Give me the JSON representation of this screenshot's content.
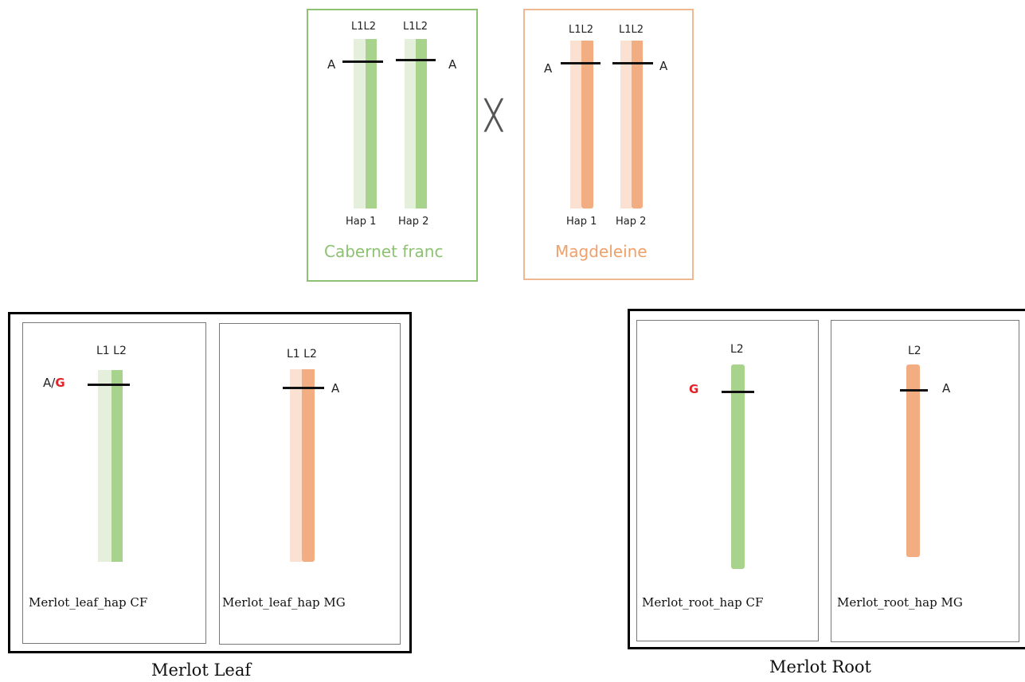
{
  "parents": {
    "cf": {
      "name": "Cabernet franc",
      "color": "#8cc271",
      "hap1_layers": "L1L2",
      "hap2_layers": "L1L2",
      "hap1_label": "Hap 1",
      "hap2_label": "Hap 2",
      "hap1_allele": "A",
      "hap2_allele": "A"
    },
    "cross_symbol": "╳",
    "mg": {
      "name": "Magdeleine",
      "color": "#f0a06a",
      "hap1_layers": "L1L2",
      "hap2_layers": "L1L2",
      "hap1_label": "Hap 1",
      "hap2_label": "Hap 2",
      "hap1_allele": "A",
      "hap2_allele": "A"
    }
  },
  "leaf": {
    "title": "Merlot Leaf",
    "cf": {
      "layers": "L1 L2",
      "allele_prefix": "A/",
      "allele_alt": "G",
      "caption": "Merlot_leaf_hap CF"
    },
    "mg": {
      "layers": "L1 L2",
      "allele": "A",
      "caption": "Merlot_leaf_hap MG"
    }
  },
  "root": {
    "title": "Merlot Root",
    "cf": {
      "layer": "L2",
      "allele_alt": "G",
      "caption": "Merlot_root_hap CF"
    },
    "mg": {
      "layer": "L2",
      "allele": "A",
      "caption": "Merlot_root_hap MG"
    }
  },
  "colors": {
    "green_light": "#e5f0dc",
    "green": "#a7d38d",
    "orange_light": "#fbe1d2",
    "orange": "#f3ad82",
    "mutation_red": "#e0242a"
  }
}
